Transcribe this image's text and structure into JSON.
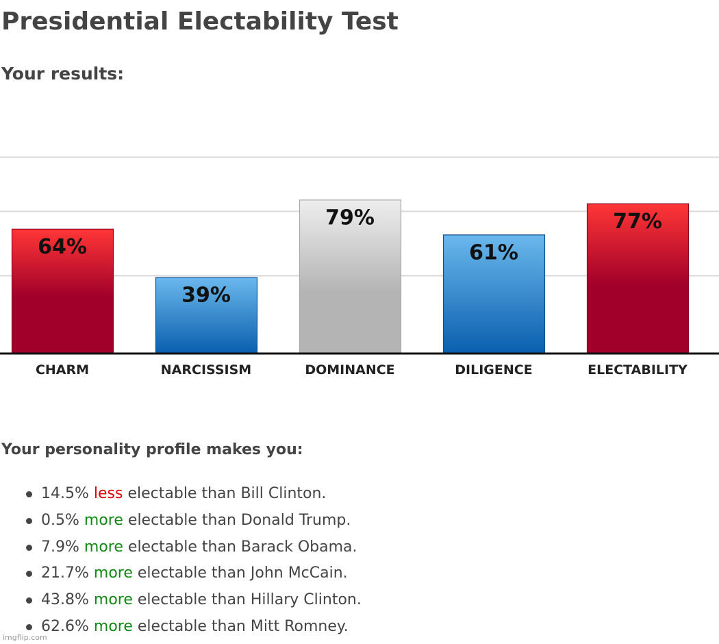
{
  "page": {
    "title": "Presidential Electability Test",
    "results_heading": "Your results:",
    "profile_heading": "Your personality profile makes you:",
    "watermark": "imgflip.com"
  },
  "chart_data": {
    "type": "bar",
    "categories": [
      "CHARM",
      "NARCISSISM",
      "DOMINANCE",
      "DILIGENCE",
      "ELECTABILITY"
    ],
    "values": [
      64,
      39,
      79,
      61,
      77
    ],
    "value_labels": [
      "64%",
      "39%",
      "79%",
      "61%",
      "77%"
    ],
    "bar_colors": [
      "red",
      "blue",
      "gray",
      "blue",
      "red"
    ],
    "ylim": [
      0,
      100
    ],
    "grid": true,
    "legend": "none",
    "title": "",
    "xlabel": "",
    "ylabel": ""
  },
  "colors": {
    "text": "#444444",
    "less": "#dd0000",
    "more": "#118811",
    "red_top": "#ff3636",
    "red_bottom": "#a0002a",
    "blue_top": "#6ab8ec",
    "blue_bottom": "#0a5fae",
    "gray_top": "#eeeeee",
    "gray_bottom": "#b4b4b4",
    "grid": "#d8d8d8",
    "axis": "#111111"
  },
  "comparisons": [
    {
      "percent": "14.5%",
      "direction": "less",
      "rest": "electable than Bill Clinton."
    },
    {
      "percent": "0.5%",
      "direction": "more",
      "rest": "electable than Donald Trump."
    },
    {
      "percent": "7.9%",
      "direction": "more",
      "rest": "electable than Barack Obama."
    },
    {
      "percent": "21.7%",
      "direction": "more",
      "rest": "electable than John McCain."
    },
    {
      "percent": "43.8%",
      "direction": "more",
      "rest": "electable than Hillary Clinton."
    },
    {
      "percent": "62.6%",
      "direction": "more",
      "rest": "electable than Mitt Romney."
    }
  ]
}
